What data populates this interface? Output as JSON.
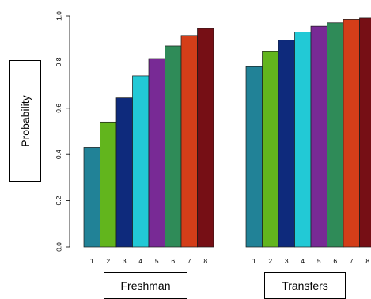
{
  "chart_data": {
    "type": "bar",
    "ylabel": "Probability",
    "ylim": [
      0,
      1
    ],
    "yticks": [
      "0.0",
      "0.2",
      "0.4",
      "0.6",
      "0.8",
      "1.0"
    ],
    "categories": [
      "1",
      "2",
      "3",
      "4",
      "5",
      "6",
      "7",
      "8"
    ],
    "colors": [
      "#218297",
      "#62b51d",
      "#0e2a7c",
      "#22c9d6",
      "#782a95",
      "#2f8b58",
      "#d43e19",
      "#760f15"
    ],
    "panels": [
      {
        "label": "Freshman",
        "values": [
          0.43,
          0.54,
          0.645,
          0.74,
          0.815,
          0.87,
          0.915,
          0.945
        ]
      },
      {
        "label": "Transfers",
        "values": [
          0.78,
          0.845,
          0.895,
          0.93,
          0.955,
          0.97,
          0.985,
          0.99
        ]
      }
    ]
  }
}
